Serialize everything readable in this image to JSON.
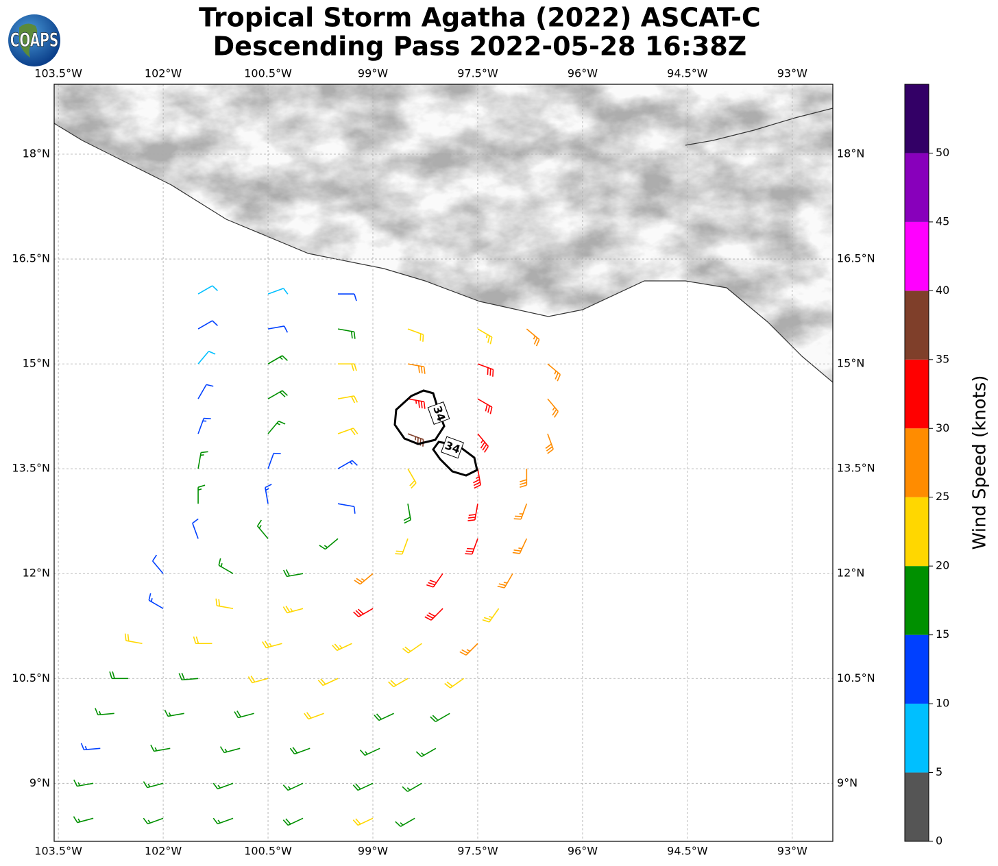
{
  "chart_data": {
    "type": "barbs",
    "title": "Tropical Storm Agatha (2022) ASCAT-C",
    "subtitle": "Descending Pass 2022-05-28 16:38Z",
    "logo": "COAPS",
    "xlim": [
      -103.56,
      -92.42
    ],
    "ylim": [
      8.17,
      19.0
    ],
    "xticks": [
      {
        "value": -103.5,
        "label": "103.5°W"
      },
      {
        "value": -102,
        "label": "102°W"
      },
      {
        "value": -100.5,
        "label": "100.5°W"
      },
      {
        "value": -99,
        "label": "99°W"
      },
      {
        "value": -97.5,
        "label": "97.5°W"
      },
      {
        "value": -96,
        "label": "96°W"
      },
      {
        "value": -94.5,
        "label": "94.5°W"
      },
      {
        "value": -93,
        "label": "93°W"
      }
    ],
    "yticks": [
      {
        "value": 9,
        "label": "9°N"
      },
      {
        "value": 10.5,
        "label": "10.5°N"
      },
      {
        "value": 12,
        "label": "12°N"
      },
      {
        "value": 13.5,
        "label": "13.5°N"
      },
      {
        "value": 15,
        "label": "15°N"
      },
      {
        "value": 16.5,
        "label": "16.5°N"
      },
      {
        "value": 18,
        "label": "18°N"
      }
    ],
    "grid": true,
    "contour_level": 34,
    "colorbar": {
      "label": "Wind Speed (knots)",
      "lim": [
        0,
        55
      ],
      "bounds": [
        0,
        5,
        10,
        15,
        20,
        25,
        30,
        35,
        40,
        45,
        50,
        55
      ],
      "colors": [
        "#555555",
        "#00bfff",
        "#0040ff",
        "#009000",
        "#ffd700",
        "#ff8c00",
        "#ff0000",
        "#7f3f2a",
        "#ff00ff",
        "#8800bb",
        "#330066"
      ],
      "ticks": [
        0,
        5,
        10,
        15,
        20,
        25,
        30,
        35,
        40,
        45,
        50
      ]
    },
    "barbs": {
      "lon": [
        -101.5,
        -100.5,
        -99.5,
        -101.5,
        -100.5,
        -99.5,
        -98.5,
        -97.5,
        -96.8,
        -101.5,
        -100.5,
        -99.5,
        -98.5,
        -97.5,
        -96.5,
        -101.5,
        -100.5,
        -99.5,
        -98.5,
        -97.5,
        -96.5,
        -101.5,
        -100.5,
        -99.5,
        -98.5,
        -97.5,
        -96.5,
        -101.5,
        -100.5,
        -99.5,
        -98.5,
        -97.5,
        -96.8,
        -101.5,
        -100.5,
        -99.5,
        -98.5,
        -97.5,
        -96.8,
        -101.5,
        -100.5,
        -99.5,
        -98.5,
        -97.5,
        -96.8,
        -102,
        -101,
        -100,
        -99,
        -98,
        -97,
        -102,
        -101,
        -100,
        -99,
        -98,
        -97.2,
        -102.3,
        -101.3,
        -100.3,
        -99.3,
        -98.3,
        -97.5,
        -102.5,
        -101.5,
        -100.5,
        -99.5,
        -98.5,
        -97.7,
        -102.7,
        -101.7,
        -100.7,
        -99.7,
        -98.7,
        -97.9,
        -102.9,
        -101.9,
        -100.9,
        -99.9,
        -98.9,
        -98.1,
        -103,
        -102,
        -101,
        -100,
        -99,
        -98.3,
        -103,
        -102,
        -101,
        -100,
        -99,
        -98.4
      ],
      "lat": [
        16,
        16,
        16,
        15.5,
        15.5,
        15.5,
        15.5,
        15.5,
        15.5,
        15,
        15,
        15,
        15,
        15,
        15,
        14.5,
        14.5,
        14.5,
        14.5,
        14.5,
        14.5,
        14,
        14,
        14,
        14,
        14,
        14,
        13.5,
        13.5,
        13.5,
        13.5,
        13.5,
        13.5,
        13,
        13,
        13,
        13,
        13,
        13,
        12.5,
        12.5,
        12.5,
        12.5,
        12.5,
        12.5,
        12,
        12,
        12,
        12,
        12,
        12,
        11.5,
        11.5,
        11.5,
        11.5,
        11.5,
        11.5,
        11,
        11,
        11,
        11,
        11,
        11,
        10.5,
        10.5,
        10.5,
        10.5,
        10.5,
        10.5,
        10,
        10,
        10,
        10,
        10,
        10,
        9.5,
        9.5,
        9.5,
        9.5,
        9.5,
        9.5,
        9,
        9,
        9,
        9,
        9,
        9,
        8.5,
        8.5,
        8.5,
        8.5,
        8.5,
        8.5
      ],
      "speed": [
        8,
        8,
        12,
        10,
        12,
        18,
        22,
        24,
        27,
        8,
        15,
        22,
        28,
        30,
        27,
        12,
        18,
        22,
        33,
        32,
        27,
        14,
        16,
        22,
        36,
        33,
        28,
        17,
        12,
        14,
        22,
        34,
        28,
        16,
        13,
        12,
        18,
        32,
        26,
        12,
        15,
        16,
        20,
        30,
        26,
        12,
        17,
        19,
        25,
        32,
        27,
        14,
        20,
        23,
        30,
        30,
        24,
        22,
        20,
        23,
        24,
        22,
        26,
        18,
        19,
        22,
        22,
        21,
        22,
        17,
        17,
        18,
        20,
        18,
        18,
        13,
        17,
        17,
        18,
        17,
        17,
        17,
        17,
        17,
        17,
        18,
        17,
        17,
        17,
        17,
        18,
        22,
        17
      ],
      "direction": [
        60,
        70,
        90,
        60,
        80,
        100,
        110,
        120,
        130,
        40,
        60,
        90,
        100,
        110,
        130,
        30,
        60,
        80,
        100,
        120,
        140,
        20,
        40,
        70,
        110,
        140,
        160,
        10,
        20,
        60,
        150,
        170,
        180,
        0,
        350,
        100,
        170,
        190,
        200,
        340,
        320,
        230,
        200,
        200,
        205,
        320,
        300,
        260,
        230,
        215,
        210,
        300,
        280,
        255,
        240,
        225,
        215,
        280,
        270,
        255,
        245,
        235,
        225,
        270,
        265,
        255,
        245,
        240,
        235,
        265,
        260,
        255,
        250,
        245,
        240,
        265,
        260,
        255,
        250,
        245,
        240,
        260,
        255,
        250,
        245,
        245,
        240,
        255,
        250,
        250,
        245,
        245,
        240
      ]
    }
  }
}
